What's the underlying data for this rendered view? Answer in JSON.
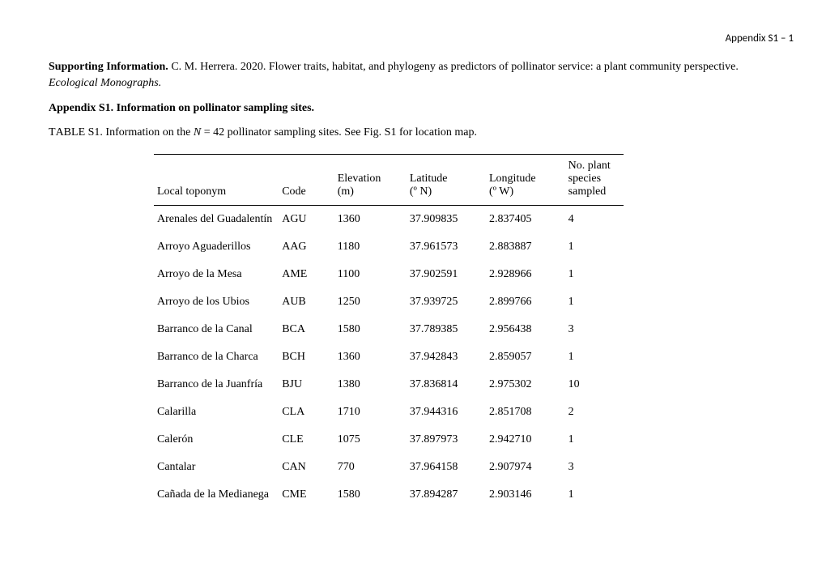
{
  "header": {
    "page_label": "Appendix S1 – 1"
  },
  "citation": {
    "lead": "Supporting Information.",
    "body": " C. M. Herrera. 2020. Flower traits, habitat, and phylogeny as predictors of pollinator service: a plant community perspective. ",
    "journal": "Ecological Monographs."
  },
  "appendix_title": "Appendix S1. Information on pollinator sampling sites.",
  "table_caption": {
    "label_pre": "T",
    "label_small": "ABLE",
    "label_post": " S1. Information on the ",
    "n_italic": "N",
    "after_n": " = 42 pollinator sampling sites. See Fig. S1 for location map."
  },
  "table": {
    "columns": [
      {
        "line1": "",
        "line2": "Local toponym"
      },
      {
        "line1": "",
        "line2": "Code"
      },
      {
        "line1": "Elevation",
        "line2": "(m)"
      },
      {
        "line1": "Latitude",
        "line2": "(º N)"
      },
      {
        "line1": "Longitude",
        "line2": "(º W)"
      },
      {
        "line1": "No. plant\nspecies",
        "line2": "sampled"
      }
    ],
    "rows": [
      {
        "toponym": "Arenales del Guadalentín",
        "code": "AGU",
        "elev": "1360",
        "lat": "37.909835",
        "lon": "2.837405",
        "nsp": "4"
      },
      {
        "toponym": "Arroyo Aguaderillos",
        "code": "AAG",
        "elev": "1180",
        "lat": "37.961573",
        "lon": "2.883887",
        "nsp": "1"
      },
      {
        "toponym": "Arroyo de la Mesa",
        "code": "AME",
        "elev": "1100",
        "lat": "37.902591",
        "lon": "2.928966",
        "nsp": "1"
      },
      {
        "toponym": "Arroyo de los Ubios",
        "code": "AUB",
        "elev": "1250",
        "lat": "37.939725",
        "lon": "2.899766",
        "nsp": "1"
      },
      {
        "toponym": "Barranco de la Canal",
        "code": "BCA",
        "elev": "1580",
        "lat": "37.789385",
        "lon": "2.956438",
        "nsp": "3"
      },
      {
        "toponym": "Barranco de la Charca",
        "code": "BCH",
        "elev": "1360",
        "lat": "37.942843",
        "lon": "2.859057",
        "nsp": "1"
      },
      {
        "toponym": "Barranco de la Juanfría",
        "code": "BJU",
        "elev": "1380",
        "lat": "37.836814",
        "lon": "2.975302",
        "nsp": "10"
      },
      {
        "toponym": "Calarilla",
        "code": "CLA",
        "elev": "1710",
        "lat": "37.944316",
        "lon": "2.851708",
        "nsp": "2"
      },
      {
        "toponym": "Calerón",
        "code": "CLE",
        "elev": "1075",
        "lat": "37.897973",
        "lon": "2.942710",
        "nsp": "1"
      },
      {
        "toponym": "Cantalar",
        "code": "CAN",
        "elev": "770",
        "lat": "37.964158",
        "lon": "2.907974",
        "nsp": "3"
      },
      {
        "toponym": "Cañada de la Medianega",
        "code": "CME",
        "elev": "1580",
        "lat": "37.894287",
        "lon": "2.903146",
        "nsp": "1"
      }
    ]
  }
}
